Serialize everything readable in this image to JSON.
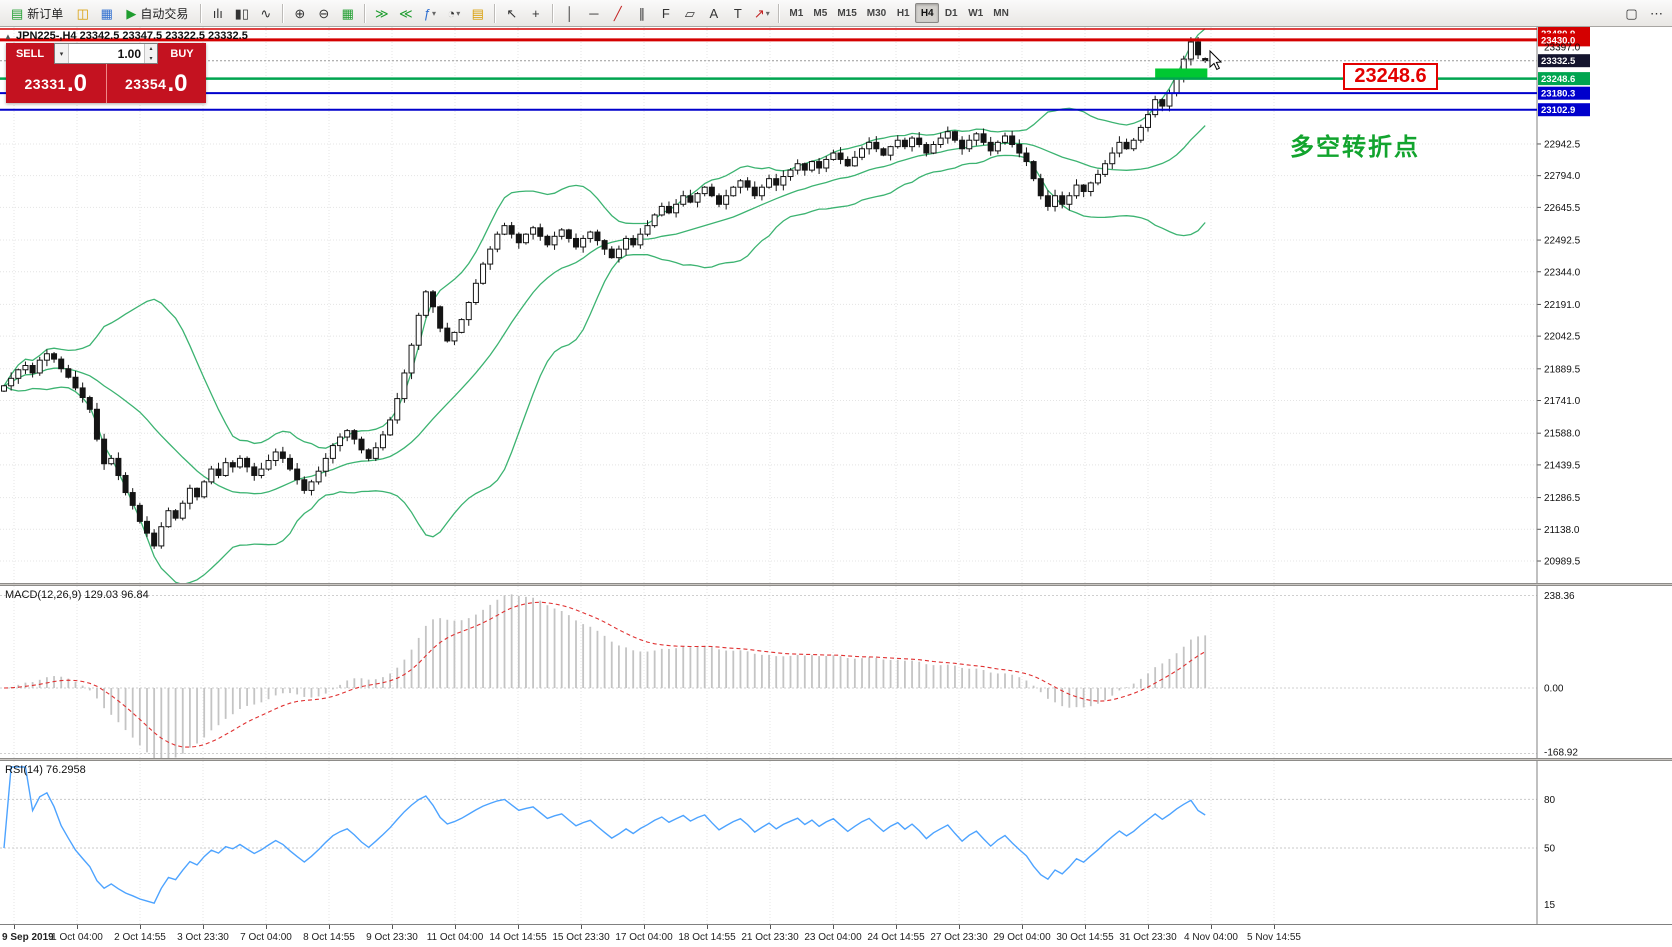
{
  "toolbar": {
    "new_order_label": "新订单",
    "autotrading_label": "自动交易",
    "icons": {
      "new_order": "▤",
      "chart_windows": "◫",
      "market_watch": "▦",
      "autotrading_play": "▶",
      "bars": "ılı",
      "candles": "▮▯",
      "line_chart": "∿",
      "zoom_in": "⊕",
      "zoom_out": "⊖",
      "tile_windows": "▦",
      "auto_scroll": "≫",
      "chart_shift": "≪",
      "indicators": "ƒ",
      "periods": "◔",
      "templates": "▤",
      "cursor": "↖",
      "crosshair": "+",
      "vertical_line": "│",
      "horizontal_line": "─",
      "trendline": "╱",
      "channel": "∥",
      "fibonacci": "F",
      "shapes": "▱",
      "text": "A",
      "label": "T",
      "arrows": "↗",
      "dropdown": "▾",
      "spin_up": "▴",
      "spin_down": "▾",
      "collapse": "▲",
      "windows": "▢",
      "more": "⋯"
    },
    "timeframes": [
      "M1",
      "M5",
      "M15",
      "M30",
      "H1",
      "H4",
      "D1",
      "W1",
      "MN"
    ],
    "active_timeframe": "H4"
  },
  "order_panel": {
    "sell_label": "SELL",
    "buy_label": "BUY",
    "volume": "1.00",
    "sell_price": "23331.0",
    "sell_price_main": "23331",
    "sell_price_big": ".0",
    "buy_price": "23354.0",
    "buy_price_main": "23354",
    "buy_price_big": ".0"
  },
  "chart": {
    "symbol_title": "JPN225-,H4 23342.5 23347.5 23322.5 23332.5",
    "annotation_price_label": "23248.6",
    "annotation_note": "多空转折点"
  },
  "indicators": {
    "macd_label": "MACD(12,26,9) 129.03 96.84",
    "rsi_label": "RSI(14) 76.2958"
  },
  "chart_data": {
    "type": "candlestick",
    "symbol": "JPN225-",
    "timeframe": "H4",
    "current_bar": {
      "open": 23342.5,
      "high": 23347.5,
      "low": 23322.5,
      "close": 23332.5
    },
    "bid": "23331.0",
    "ask": "23354.0",
    "closes": [
      21810,
      21845,
      21885,
      21905,
      21870,
      21930,
      21960,
      21935,
      21890,
      21850,
      21800,
      21755,
      21700,
      21560,
      21445,
      21470,
      21390,
      21310,
      21250,
      21175,
      21120,
      21060,
      21150,
      21225,
      21190,
      21260,
      21330,
      21290,
      21360,
      21420,
      21390,
      21450,
      21430,
      21470,
      21430,
      21390,
      21420,
      21460,
      21500,
      21470,
      21420,
      21370,
      21320,
      21360,
      21410,
      21470,
      21530,
      21570,
      21600,
      21560,
      21510,
      21470,
      21520,
      21580,
      21650,
      21750,
      21870,
      22000,
      22140,
      22250,
      22180,
      22080,
      22020,
      22060,
      22120,
      22200,
      22290,
      22380,
      22450,
      22520,
      22560,
      22520,
      22480,
      22520,
      22550,
      22510,
      22470,
      22510,
      22540,
      22500,
      22460,
      22500,
      22530,
      22490,
      22450,
      22410,
      22450,
      22500,
      22470,
      22520,
      22560,
      22610,
      22650,
      22620,
      22660,
      22700,
      22670,
      22710,
      22740,
      22700,
      22660,
      22700,
      22740,
      22770,
      22740,
      22700,
      22740,
      22780,
      22750,
      22790,
      22820,
      22850,
      22820,
      22860,
      22830,
      22870,
      22900,
      22870,
      22840,
      22880,
      22920,
      22950,
      22920,
      22890,
      22930,
      22960,
      22930,
      22970,
      22940,
      22900,
      22940,
      22970,
      23000,
      22960,
      22920,
      22960,
      22990,
      22950,
      22910,
      22950,
      22980,
      22940,
      22900,
      22860,
      22780,
      22700,
      22650,
      22700,
      22660,
      22700,
      22750,
      22720,
      22760,
      22800,
      22850,
      22900,
      22950,
      22920,
      22960,
      23020,
      23080,
      23150,
      23120,
      23180,
      23260,
      23340,
      23420,
      23360,
      23332.5
    ],
    "price_axis": [
      "22942.5",
      "22794.0",
      "22645.5",
      "22492.5",
      "22344.0",
      "22191.0",
      "22042.5",
      "21889.5",
      "21741.0",
      "21588.0",
      "21439.5",
      "21286.5",
      "21138.0",
      "20989.5"
    ],
    "extra_axis_label": {
      "label": "23397.0",
      "value": 23397.0
    },
    "current_price_tag": {
      "label": "23332.5",
      "value": 23332.5,
      "bg": "#14142e"
    },
    "price_levels": [
      {
        "label": "23480.9",
        "value": 23480.9,
        "color": "#d40000",
        "line_width": 1.5
      },
      {
        "label": "23430.0",
        "value": 23430.0,
        "color": "#d40000",
        "line_width": 3
      },
      {
        "label": "23248.6",
        "value": 23248.6,
        "color": "#00a550",
        "line_width": 2.5
      },
      {
        "label": "23180.3",
        "value": 23180.3,
        "color": "#0000cc",
        "line_width": 2
      },
      {
        "label": "23102.9",
        "value": 23102.9,
        "color": "#0000cc",
        "line_width": 2
      }
    ],
    "highlight_rect": {
      "bar_start": 161,
      "bar_end": 168.3,
      "price_top": 23296,
      "price_bottom": 23244,
      "color": "#00c832"
    },
    "bollinger": {
      "period": 20,
      "deviation": 2,
      "color": "#3cb371"
    },
    "macd": {
      "fast": 12,
      "slow": 26,
      "signal": 9,
      "axis": [
        {
          "label": "238.36",
          "value": 238.36
        },
        {
          "label": "0.00",
          "value": 0
        },
        {
          "label": "-168.92",
          "value": -168.92
        }
      ],
      "histogram_color": "#c4c4c4",
      "signal_color": "#e03131"
    },
    "rsi": {
      "period": 14,
      "levels": [
        80,
        50
      ],
      "axis": [
        {
          "label": "80",
          "value": 80
        },
        {
          "label": "50",
          "value": 50
        },
        {
          "label": "15",
          "value": 15
        }
      ],
      "color": "#4da3ff"
    },
    "time_labels": [
      "9 Sep 2019",
      "1 Oct 04:00",
      "2 Oct 14:55",
      "3 Oct 23:30",
      "7 Oct 04:00",
      "8 Oct 14:55",
      "9 Oct 23:30",
      "11 Oct 04:00",
      "14 Oct 14:55",
      "15 Oct 23:30",
      "17 Oct 04:00",
      "18 Oct 14:55",
      "21 Oct 23:30",
      "23 Oct 04:00",
      "24 Oct 14:55",
      "27 Oct 23:30",
      "29 Oct 04:00",
      "30 Oct 14:55",
      "31 Oct 23:30",
      "4 Nov 04:00",
      "5 Nov 14:55"
    ]
  }
}
